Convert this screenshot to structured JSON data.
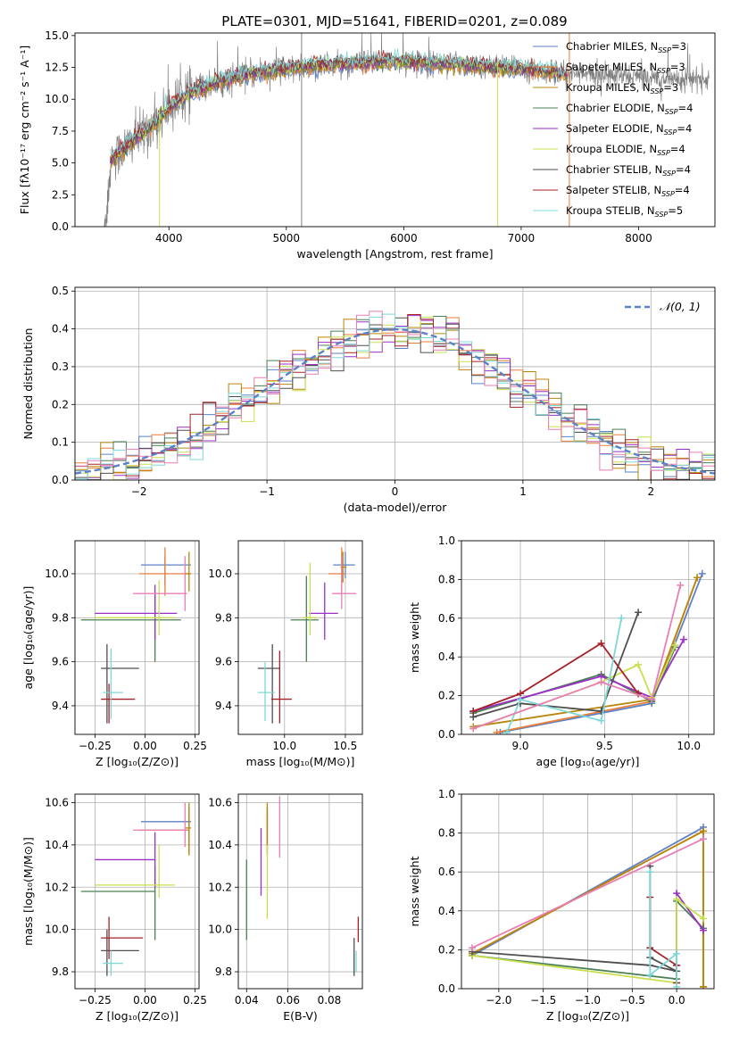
{
  "figure": {
    "title": "PLATE=0301, MJD=51641, FIBERID=0201, z=0.089"
  },
  "colors": {
    "chabrier_miles": "#5b82c8",
    "salpeter_miles": "#e87e3a",
    "kroupa_miles": "#b8860b",
    "chabrier_elodie": "#4a7f55",
    "salpeter_elodie": "#9b30c4",
    "kroupa_elodie": "#c8e050",
    "chabrier_stelib": "#4f4f4f",
    "salpeter_stelib": "#a52228",
    "kroupa_stelib": "#7fd8d8",
    "data_spectrum": "#808080",
    "gaussian": "#5b82c8",
    "extra_pink": "#e87fb4"
  },
  "chart_data": [
    {
      "id": "spectrum",
      "type": "line",
      "xlabel": "wavelength [Angstrom, rest frame]",
      "ylabel": "Flux [fλ10⁻¹⁷ erg cm⁻² s⁻¹ A⁻¹]",
      "xlim": [
        3200,
        8650
      ],
      "ylim": [
        0,
        15.2
      ],
      "xticks": [
        "4000",
        "5000",
        "6000",
        "7000",
        "8000"
      ],
      "yticks": [
        "0.0",
        "2.5",
        "5.0",
        "7.5",
        "10.0",
        "12.5",
        "15.0"
      ],
      "xtick_values": [
        4000,
        5000,
        6000,
        7000,
        8000
      ],
      "ytick_values": [
        0,
        2.5,
        5,
        7.5,
        10,
        12.5,
        15
      ],
      "grid": false,
      "legend_position": "right",
      "legend": [
        {
          "label": "Chabrier MILES, N",
          "sub": "SSP",
          "suffix": "=3",
          "color": "#5b82c8"
        },
        {
          "label": "Salpeter MILES, N",
          "sub": "SSP",
          "suffix": "=3",
          "color": "#e87e3a"
        },
        {
          "label": "Kroupa MILES, N",
          "sub": "SSP",
          "suffix": "=3",
          "color": "#b8860b"
        },
        {
          "label": "Chabrier ELODIE, N",
          "sub": "SSP",
          "suffix": "=4",
          "color": "#4a7f55"
        },
        {
          "label": "Salpeter ELODIE, N",
          "sub": "SSP",
          "suffix": "=4",
          "color": "#9b30c4"
        },
        {
          "label": "Kroupa ELODIE, N",
          "sub": "SSP",
          "suffix": "=4",
          "color": "#c8e050"
        },
        {
          "label": "Chabrier STELIB, N",
          "sub": "SSP",
          "suffix": "=4",
          "color": "#4f4f4f"
        },
        {
          "label": "Salpeter STELIB, N",
          "sub": "SSP",
          "suffix": "=4",
          "color": "#a52228"
        },
        {
          "label": "Kroupa STELIB, N",
          "sub": "SSP",
          "suffix": "=5",
          "color": "#7fd8d8"
        }
      ],
      "continuum": {
        "x": [
          3500,
          3600,
          3700,
          3800,
          3900,
          4000,
          4100,
          4200,
          4300,
          4400,
          4500,
          4600,
          4700,
          4800,
          5000,
          5200,
          5500,
          6000,
          6500,
          7000,
          7300,
          7400
        ],
        "y": [
          5.2,
          6.0,
          6.8,
          7.5,
          8.3,
          9.3,
          10.0,
          10.6,
          10.9,
          11.3,
          11.6,
          11.8,
          12.0,
          12.2,
          12.4,
          12.6,
          12.8,
          13.0,
          12.7,
          12.4,
          12.1,
          12.0
        ]
      },
      "data_x_range": [
        3450,
        8600
      ]
    },
    {
      "id": "residuals",
      "type": "histogram",
      "xlabel": "(data-model)/error",
      "ylabel": "Normed distribution",
      "xlim": [
        -2.5,
        2.5
      ],
      "ylim": [
        0,
        0.51
      ],
      "xticks": [
        "−2",
        "−1",
        "0",
        "1",
        "2"
      ],
      "xtick_values": [
        -2,
        -1,
        0,
        1,
        2
      ],
      "yticks": [
        "0.0",
        "0.1",
        "0.2",
        "0.3",
        "0.4",
        "0.5"
      ],
      "ytick_values": [
        0,
        0.1,
        0.2,
        0.3,
        0.4,
        0.5
      ],
      "grid": true,
      "bin_width": 0.1,
      "legend": [
        {
          "label": "𝒩(0, 1)",
          "color": "#5b82c8"
        }
      ],
      "legend_position": "top-right"
    },
    {
      "id": "age_vs_Z",
      "type": "scatter",
      "xlabel": "Z [log₁₀(Z/Z⊙)]",
      "ylabel": "age  [log₁₀(age/yr)]",
      "xlim": [
        -0.35,
        0.27
      ],
      "ylim": [
        9.27,
        10.15
      ],
      "xticks": [
        "−0.25",
        "0.00",
        "0.25"
      ],
      "xtick_values": [
        -0.25,
        0,
        0.25
      ],
      "yticks": [
        "9.4",
        "9.6",
        "9.8",
        "10.0"
      ],
      "ytick_values": [
        9.4,
        9.6,
        9.8,
        10.0
      ],
      "grid": true,
      "crosses": [
        {
          "x": 0.1,
          "y": 10.04,
          "xmin": -0.02,
          "xmax": 0.23,
          "ymin": 9.95,
          "ymax": 10.08,
          "c": "#5b82c8"
        },
        {
          "x": 0.1,
          "y": 10.0,
          "xmin": -0.03,
          "xmax": 0.22,
          "ymin": 9.9,
          "ymax": 10.12,
          "c": "#e87e3a"
        },
        {
          "x": 0.22,
          "y": 10.0,
          "xmin": 0.2,
          "xmax": 0.23,
          "ymin": 9.92,
          "ymax": 10.1,
          "c": "#b8860b"
        },
        {
          "x": 0.05,
          "y": 9.79,
          "xmin": -0.32,
          "xmax": 0.18,
          "ymin": 9.6,
          "ymax": 9.9,
          "c": "#4a7f55"
        },
        {
          "x": 0.05,
          "y": 9.82,
          "xmin": -0.25,
          "xmax": 0.16,
          "ymin": 9.7,
          "ymax": 9.95,
          "c": "#9b30c4"
        },
        {
          "x": 0.07,
          "y": 9.8,
          "xmin": -0.25,
          "xmax": 0.15,
          "ymin": 9.72,
          "ymax": 9.97,
          "c": "#c8e050"
        },
        {
          "x": -0.19,
          "y": 9.57,
          "xmin": -0.22,
          "xmax": -0.03,
          "ymin": 9.32,
          "ymax": 9.68,
          "c": "#4f4f4f"
        },
        {
          "x": -0.18,
          "y": 9.43,
          "xmin": -0.22,
          "xmax": -0.05,
          "ymin": 9.32,
          "ymax": 9.5,
          "c": "#a52228"
        },
        {
          "x": -0.17,
          "y": 9.46,
          "xmin": -0.21,
          "xmax": -0.11,
          "ymin": 9.34,
          "ymax": 9.66,
          "c": "#7fd8d8"
        },
        {
          "x": 0.2,
          "y": 9.91,
          "xmin": -0.06,
          "xmax": 0.21,
          "ymin": 9.83,
          "ymax": 10.08,
          "c": "#e87fb4"
        }
      ]
    },
    {
      "id": "age_vs_mass",
      "type": "scatter",
      "xlabel": "mass [log₁₀(M/M⊙)]",
      "ylabel": "",
      "xlim": [
        9.62,
        10.64
      ],
      "ylim": [
        9.27,
        10.15
      ],
      "xticks": [
        "10.0",
        "10.5"
      ],
      "xtick_values": [
        10.0,
        10.5
      ],
      "yticks": [
        "9.4",
        "9.6",
        "9.8",
        "10.0"
      ],
      "ytick_values": [
        9.4,
        9.6,
        9.8,
        10.0
      ],
      "grid": true,
      "crosses": [
        {
          "x": 10.5,
          "y": 10.04,
          "xmin": 10.4,
          "xmax": 10.58,
          "ymin": 9.98,
          "ymax": 10.1,
          "c": "#5b82c8"
        },
        {
          "x": 10.47,
          "y": 10.0,
          "xmin": 10.36,
          "xmax": 10.5,
          "ymin": 9.92,
          "ymax": 10.12,
          "c": "#e87e3a"
        },
        {
          "x": 10.48,
          "y": 10.03,
          "xmin": 10.46,
          "xmax": 10.51,
          "ymin": 9.96,
          "ymax": 10.1,
          "c": "#b8860b"
        },
        {
          "x": 10.18,
          "y": 9.79,
          "xmin": 10.05,
          "xmax": 10.28,
          "ymin": 9.6,
          "ymax": 9.99,
          "c": "#4a7f55"
        },
        {
          "x": 10.33,
          "y": 9.82,
          "xmin": 10.2,
          "xmax": 10.44,
          "ymin": 9.7,
          "ymax": 9.96,
          "c": "#9b30c4"
        },
        {
          "x": 10.21,
          "y": 9.8,
          "xmin": 10.15,
          "xmax": 10.27,
          "ymin": 9.72,
          "ymax": 10.05,
          "c": "#c8e050"
        },
        {
          "x": 9.9,
          "y": 9.57,
          "xmin": 9.78,
          "xmax": 9.96,
          "ymin": 9.32,
          "ymax": 9.68,
          "c": "#4f4f4f"
        },
        {
          "x": 9.96,
          "y": 9.43,
          "xmin": 9.89,
          "xmax": 10.06,
          "ymin": 9.32,
          "ymax": 9.65,
          "c": "#a52228"
        },
        {
          "x": 9.84,
          "y": 9.46,
          "xmin": 9.78,
          "xmax": 9.92,
          "ymin": 9.33,
          "ymax": 9.6,
          "c": "#7fd8d8"
        },
        {
          "x": 10.47,
          "y": 9.91,
          "xmin": 10.39,
          "xmax": 10.59,
          "ymin": 9.84,
          "ymax": 10.08,
          "c": "#e87fb4"
        }
      ]
    },
    {
      "id": "mass_weight_vs_age",
      "type": "line",
      "xlabel": "age  [log₁₀(age/yr)]",
      "ylabel": "mass weight",
      "xlim": [
        8.65,
        10.15
      ],
      "ylim": [
        0,
        1.0
      ],
      "xticks": [
        "9.0",
        "9.5",
        "10.0"
      ],
      "xtick_values": [
        9.0,
        9.5,
        10.0
      ],
      "yticks": [
        "0.0",
        "0.2",
        "0.4",
        "0.6",
        "0.8",
        "1.0"
      ],
      "ytick_values": [
        0,
        0.2,
        0.4,
        0.6,
        0.8,
        1.0
      ],
      "grid": true,
      "series": [
        {
          "c": "#5b82c8",
          "x": [
            8.88,
            9.78,
            10.08
          ],
          "y": [
            0.01,
            0.16,
            0.83
          ]
        },
        {
          "c": "#e87e3a",
          "x": [
            8.86,
            9.78,
            10.05
          ],
          "y": [
            0.01,
            0.17,
            0.81
          ]
        },
        {
          "c": "#b8860b",
          "x": [
            8.72,
            9.78,
            10.05
          ],
          "y": [
            0.04,
            0.18,
            0.81
          ]
        },
        {
          "c": "#4a7f55",
          "x": [
            8.72,
            9.48,
            9.78,
            9.92
          ],
          "y": [
            0.11,
            0.31,
            0.17,
            0.45
          ]
        },
        {
          "c": "#9b30c4",
          "x": [
            8.72,
            9.48,
            9.78,
            9.97
          ],
          "y": [
            0.12,
            0.3,
            0.19,
            0.49
          ]
        },
        {
          "c": "#c8e050",
          "x": [
            8.72,
            9.48,
            9.7,
            9.78,
            9.92
          ],
          "y": [
            0.03,
            0.27,
            0.36,
            0.19,
            0.46
          ]
        },
        {
          "c": "#4f4f4f",
          "x": [
            8.72,
            9.0,
            9.48,
            9.7
          ],
          "y": [
            0.09,
            0.16,
            0.12,
            0.63
          ]
        },
        {
          "c": "#a52228",
          "x": [
            8.72,
            9.0,
            9.48,
            9.7
          ],
          "y": [
            0.12,
            0.21,
            0.47,
            0.21
          ]
        },
        {
          "c": "#7fd8d8",
          "x": [
            8.92,
            9.0,
            9.48,
            9.6
          ],
          "y": [
            0.01,
            0.18,
            0.07,
            0.6
          ]
        },
        {
          "c": "#e87fb4",
          "x": [
            8.72,
            9.48,
            9.78,
            9.95
          ],
          "y": [
            0.03,
            0.27,
            0.18,
            0.77
          ]
        }
      ]
    },
    {
      "id": "mass_vs_Z",
      "type": "scatter",
      "xlabel": "Z [log₁₀(Z/Z⊙)]",
      "ylabel": "mass [log₁₀(M/M⊙)]",
      "xlim": [
        -0.35,
        0.27
      ],
      "ylim": [
        9.72,
        10.64
      ],
      "xticks": [
        "−0.25",
        "0.00",
        "0.25"
      ],
      "xtick_values": [
        -0.25,
        0,
        0.25
      ],
      "yticks": [
        "9.8",
        "10.0",
        "10.2",
        "10.4",
        "10.6"
      ],
      "ytick_values": [
        9.8,
        10.0,
        10.2,
        10.4,
        10.6
      ],
      "grid": true,
      "crosses": [
        {
          "x": 0.22,
          "y": 10.51,
          "xmin": -0.02,
          "xmax": 0.23,
          "ymin": 10.4,
          "ymax": 10.58,
          "c": "#5b82c8"
        },
        {
          "x": 0.22,
          "y": 10.47,
          "xmin": -0.03,
          "xmax": 0.22,
          "ymin": 10.36,
          "ymax": 10.55,
          "c": "#e87e3a"
        },
        {
          "x": 0.22,
          "y": 10.48,
          "xmin": 0.2,
          "xmax": 0.23,
          "ymin": 10.35,
          "ymax": 10.6,
          "c": "#b8860b"
        },
        {
          "x": 0.05,
          "y": 10.18,
          "xmin": -0.32,
          "xmax": 0.05,
          "ymin": 9.95,
          "ymax": 10.3,
          "c": "#4a7f55"
        },
        {
          "x": 0.05,
          "y": 10.33,
          "xmin": -0.25,
          "xmax": 0.05,
          "ymin": 10.2,
          "ymax": 10.46,
          "c": "#9b30c4"
        },
        {
          "x": 0.07,
          "y": 10.21,
          "xmin": -0.25,
          "xmax": 0.15,
          "ymin": 10.15,
          "ymax": 10.4,
          "c": "#c8e050"
        },
        {
          "x": -0.19,
          "y": 9.9,
          "xmin": -0.22,
          "xmax": -0.03,
          "ymin": 9.78,
          "ymax": 10.0,
          "c": "#4f4f4f"
        },
        {
          "x": -0.18,
          "y": 9.96,
          "xmin": -0.22,
          "xmax": -0.01,
          "ymin": 9.86,
          "ymax": 10.06,
          "c": "#a52228"
        },
        {
          "x": -0.17,
          "y": 9.84,
          "xmin": -0.21,
          "xmax": -0.11,
          "ymin": 9.78,
          "ymax": 9.9,
          "c": "#7fd8d8"
        },
        {
          "x": 0.2,
          "y": 10.47,
          "xmin": -0.06,
          "xmax": 0.21,
          "ymin": 10.39,
          "ymax": 10.6,
          "c": "#e87fb4"
        }
      ]
    },
    {
      "id": "mass_vs_EBV",
      "type": "scatter",
      "xlabel": "E(B-V)",
      "ylabel": "",
      "xlim": [
        0.036,
        0.096
      ],
      "ylim": [
        9.72,
        10.64
      ],
      "xticks": [
        "0.04",
        "0.06",
        "0.08"
      ],
      "xtick_values": [
        0.04,
        0.06,
        0.08
      ],
      "yticks": [
        "9.8",
        "10.0",
        "10.2",
        "10.4",
        "10.6"
      ],
      "ytick_values": [
        9.8,
        10.0,
        10.2,
        10.4,
        10.6
      ],
      "grid": true,
      "vbars": [
        {
          "x": 0.05,
          "ymin": 10.4,
          "ymax": 10.58,
          "c": "#5b82c8"
        },
        {
          "x": 0.05,
          "ymin": 10.36,
          "ymax": 10.57,
          "c": "#e87e3a"
        },
        {
          "x": 0.05,
          "ymin": 10.35,
          "ymax": 10.6,
          "c": "#b8860b"
        },
        {
          "x": 0.04,
          "ymin": 9.95,
          "ymax": 10.33,
          "c": "#4a7f55"
        },
        {
          "x": 0.047,
          "ymin": 10.16,
          "ymax": 10.48,
          "c": "#9b30c4"
        },
        {
          "x": 0.05,
          "ymin": 10.05,
          "ymax": 10.4,
          "c": "#c8e050"
        },
        {
          "x": 0.092,
          "ymin": 9.78,
          "ymax": 9.96,
          "c": "#4f4f4f"
        },
        {
          "x": 0.094,
          "ymin": 9.94,
          "ymax": 10.06,
          "c": "#a52228"
        },
        {
          "x": 0.093,
          "ymin": 9.8,
          "ymax": 9.9,
          "c": "#7fd8d8"
        },
        {
          "x": 0.056,
          "ymin": 10.34,
          "ymax": 10.63,
          "c": "#e87fb4"
        }
      ]
    },
    {
      "id": "mass_weight_vs_Z",
      "type": "line",
      "xlabel": "Z [log₁₀(Z/Z⊙)]",
      "ylabel": "mass weight",
      "xlim": [
        -2.42,
        0.42
      ],
      "ylim": [
        0,
        1.0
      ],
      "xticks": [
        "−2.0",
        "−1.5",
        "−1.0",
        "−0.5",
        "0.0"
      ],
      "xtick_values": [
        -2.0,
        -1.5,
        -1.0,
        -0.5,
        0.0
      ],
      "yticks": [
        "0.0",
        "0.2",
        "0.4",
        "0.6",
        "0.8",
        "1.0"
      ],
      "ytick_values": [
        0,
        0.2,
        0.4,
        0.6,
        0.8,
        1.0
      ],
      "grid": true,
      "series": [
        {
          "c": "#5b82c8",
          "x": [
            -2.3,
            0.3,
            0.3
          ],
          "y": [
            0.17,
            0.83,
            0.01
          ]
        },
        {
          "c": "#e87e3a",
          "x": [
            -2.3,
            0.3,
            0.3
          ],
          "y": [
            0.18,
            0.81,
            0.01
          ]
        },
        {
          "c": "#b8860b",
          "x": [
            -2.3,
            0.3,
            0.3
          ],
          "y": [
            0.18,
            0.81,
            0.01
          ]
        },
        {
          "c": "#4a7f55",
          "x": [
            -2.3,
            0.0,
            0.0,
            0.3
          ],
          "y": [
            0.17,
            0.05,
            0.45,
            0.31
          ]
        },
        {
          "c": "#9b30c4",
          "x": [
            0.0,
            0.0,
            0.3
          ],
          "y": [
            0.12,
            0.49,
            0.3
          ]
        },
        {
          "c": "#c8e050",
          "x": [
            -2.3,
            0.0,
            0.0,
            0.3
          ],
          "y": [
            0.17,
            0.03,
            0.46,
            0.36
          ]
        },
        {
          "c": "#4f4f4f",
          "x": [
            -2.3,
            -0.3,
            0.0,
            -0.3,
            -0.3
          ],
          "y": [
            0.19,
            0.12,
            0.09,
            0.16,
            0.63
          ]
        },
        {
          "c": "#a52228",
          "x": [
            -0.3,
            -0.3,
            0.0,
            0.0
          ],
          "y": [
            0.47,
            0.21,
            0.12,
            0.03
          ]
        },
        {
          "c": "#7fd8d8",
          "x": [
            -0.3,
            -0.3,
            0.0,
            0.0
          ],
          "y": [
            0.6,
            0.07,
            0.18,
            0.01
          ]
        },
        {
          "c": "#e87fb4",
          "x": [
            -2.3,
            0.3
          ],
          "y": [
            0.21,
            0.77
          ]
        }
      ]
    }
  ]
}
